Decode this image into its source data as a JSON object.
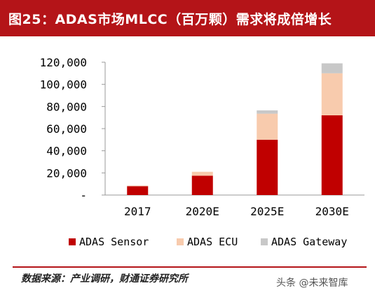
{
  "header": {
    "title": "图25：ADAS市场MLCC（百万颗）需求将成倍增长"
  },
  "chart_data": {
    "type": "bar",
    "stacked": true,
    "categories": [
      "2017",
      "2020E",
      "2025E",
      "2030E"
    ],
    "series": [
      {
        "name": "ADAS Sensor",
        "color": "#c00000",
        "values": [
          8000,
          17500,
          50000,
          72000
        ]
      },
      {
        "name": "ADAS ECU",
        "color": "#f8cbad",
        "values": [
          500,
          3500,
          23500,
          38000
        ]
      },
      {
        "name": "ADAS Gateway",
        "color": "#c8c8c8",
        "values": [
          0,
          0,
          3000,
          9000
        ]
      }
    ],
    "y_ticks": [
      "-",
      "20,000",
      "40,000",
      "60,000",
      "80,000",
      "100,000",
      "120,000"
    ],
    "ylim": [
      0,
      120000
    ],
    "grid": false,
    "legend_position": "bottom",
    "xlabel": "",
    "ylabel": ""
  },
  "footer": {
    "source": "数据来源：产业调研，财通证券研究所",
    "watermark": "头条 @未来智库"
  }
}
